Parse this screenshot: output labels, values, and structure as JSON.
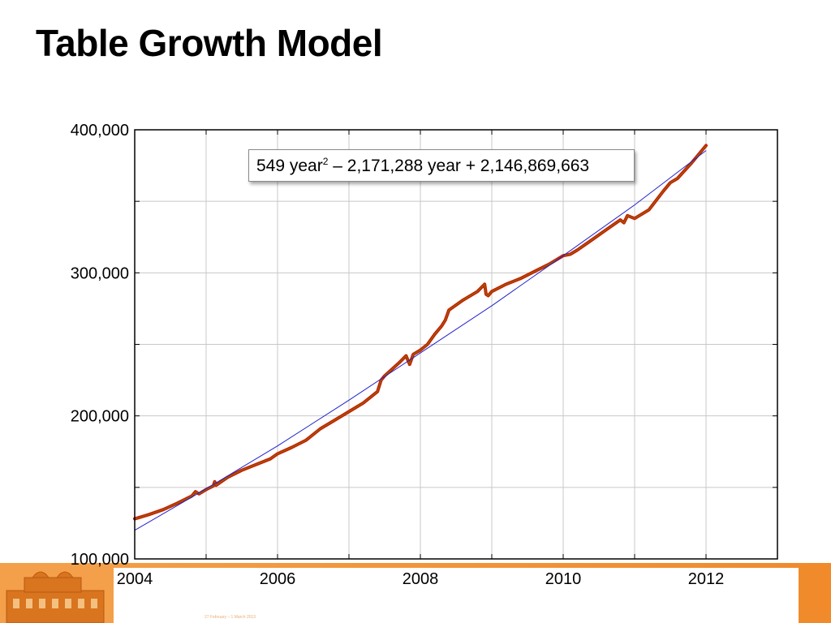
{
  "title": "Table Growth Model",
  "footer": {
    "note": "27 February – 1 March 2013",
    "colors": {
      "band": "#f08a2a",
      "logo": "#d9741f"
    }
  },
  "annotation": {
    "a": "549 year",
    "exp": "2",
    "rest": " – 2,171,288 year + 2,146,869,663"
  },
  "chart_data": {
    "type": "line",
    "title": "",
    "xlabel": "",
    "ylabel": "",
    "xlim": [
      2004,
      2013
    ],
    "ylim": [
      100000,
      400000
    ],
    "x_ticks": [
      2004,
      2006,
      2008,
      2010,
      2012
    ],
    "x_tick_labels": [
      "2004",
      "2006",
      "2008",
      "2010",
      "2012"
    ],
    "y_ticks": [
      100000,
      200000,
      300000,
      400000
    ],
    "y_tick_labels": [
      "100,000",
      "200,000",
      "300,000",
      "400,000"
    ],
    "grid": true,
    "series": [
      {
        "role": "observed",
        "color": "#cc1a00",
        "x": [
          2004.0,
          2004.2,
          2004.4,
          2004.6,
          2004.8,
          2004.85,
          2004.9,
          2005.0,
          2005.1,
          2005.12,
          2005.14,
          2005.3,
          2005.5,
          2005.7,
          2005.9,
          2006.0,
          2006.2,
          2006.4,
          2006.6,
          2006.8,
          2007.0,
          2007.2,
          2007.4,
          2007.45,
          2007.5,
          2007.7,
          2007.8,
          2007.85,
          2007.9,
          2008.0,
          2008.1,
          2008.2,
          2008.3,
          2008.35,
          2008.4,
          2008.6,
          2008.8,
          2008.9,
          2008.92,
          2008.95,
          2009.0,
          2009.2,
          2009.4,
          2009.6,
          2009.8,
          2010.0,
          2010.1,
          2010.2,
          2010.4,
          2010.6,
          2010.8,
          2010.85,
          2010.9,
          2011.0,
          2011.2,
          2011.4,
          2011.5,
          2011.6,
          2011.8,
          2012.0
        ],
        "y": [
          128000,
          131000,
          134500,
          139000,
          144000,
          147000,
          145500,
          148500,
          151000,
          154000,
          151500,
          157000,
          162000,
          166000,
          170000,
          173500,
          178000,
          183000,
          191000,
          197000,
          203000,
          209000,
          217000,
          225000,
          228000,
          237000,
          242000,
          236000,
          243000,
          246000,
          250000,
          257000,
          263000,
          267000,
          274000,
          281000,
          287000,
          292000,
          285000,
          284000,
          287000,
          292000,
          296000,
          301000,
          306000,
          312000,
          313000,
          316000,
          323000,
          330000,
          337000,
          335000,
          340000,
          338000,
          344000,
          357000,
          363000,
          366000,
          377000,
          389000
        ]
      },
      {
        "role": "fit",
        "color": "#2222cc",
        "x": [
          2004.0,
          2005.0,
          2006.0,
          2007.0,
          2008.0,
          2009.0,
          2010.0,
          2011.0,
          2012.0
        ],
        "y": [
          120000,
          149000,
          179000,
          211000,
          244000,
          277000,
          312000,
          347500,
          385500
        ]
      }
    ]
  }
}
